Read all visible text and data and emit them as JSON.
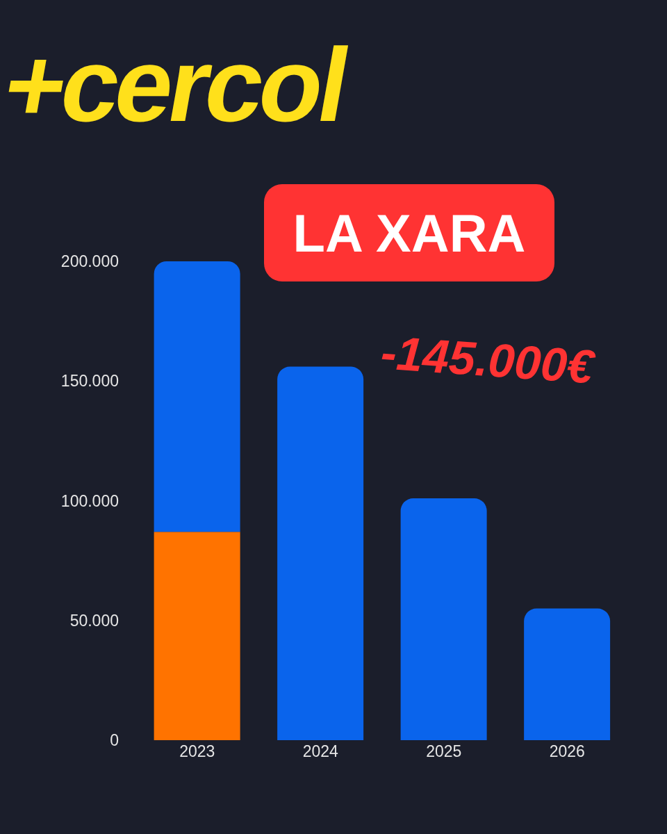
{
  "chart_data": {
    "type": "bar",
    "title": "+cercol",
    "subtitle": "LA XARA",
    "annotations": [
      "-145.000€"
    ],
    "categories": [
      "2023",
      "2024",
      "2025",
      "2026"
    ],
    "stacked": true,
    "series": [
      {
        "color": "#ff7300",
        "values": [
          87000,
          null,
          null,
          null
        ]
      },
      {
        "color": "#0a64ec",
        "values": [
          113000,
          156000,
          101000,
          55000
        ]
      }
    ],
    "ylim": [
      0,
      200000
    ],
    "yticks": [
      {
        "value": 0,
        "label": "0"
      },
      {
        "value": 50000,
        "label": "50.000"
      },
      {
        "value": 100000,
        "label": "100.000"
      },
      {
        "value": 150000,
        "label": "150.000"
      },
      {
        "value": 200000,
        "label": "200.000"
      }
    ]
  }
}
